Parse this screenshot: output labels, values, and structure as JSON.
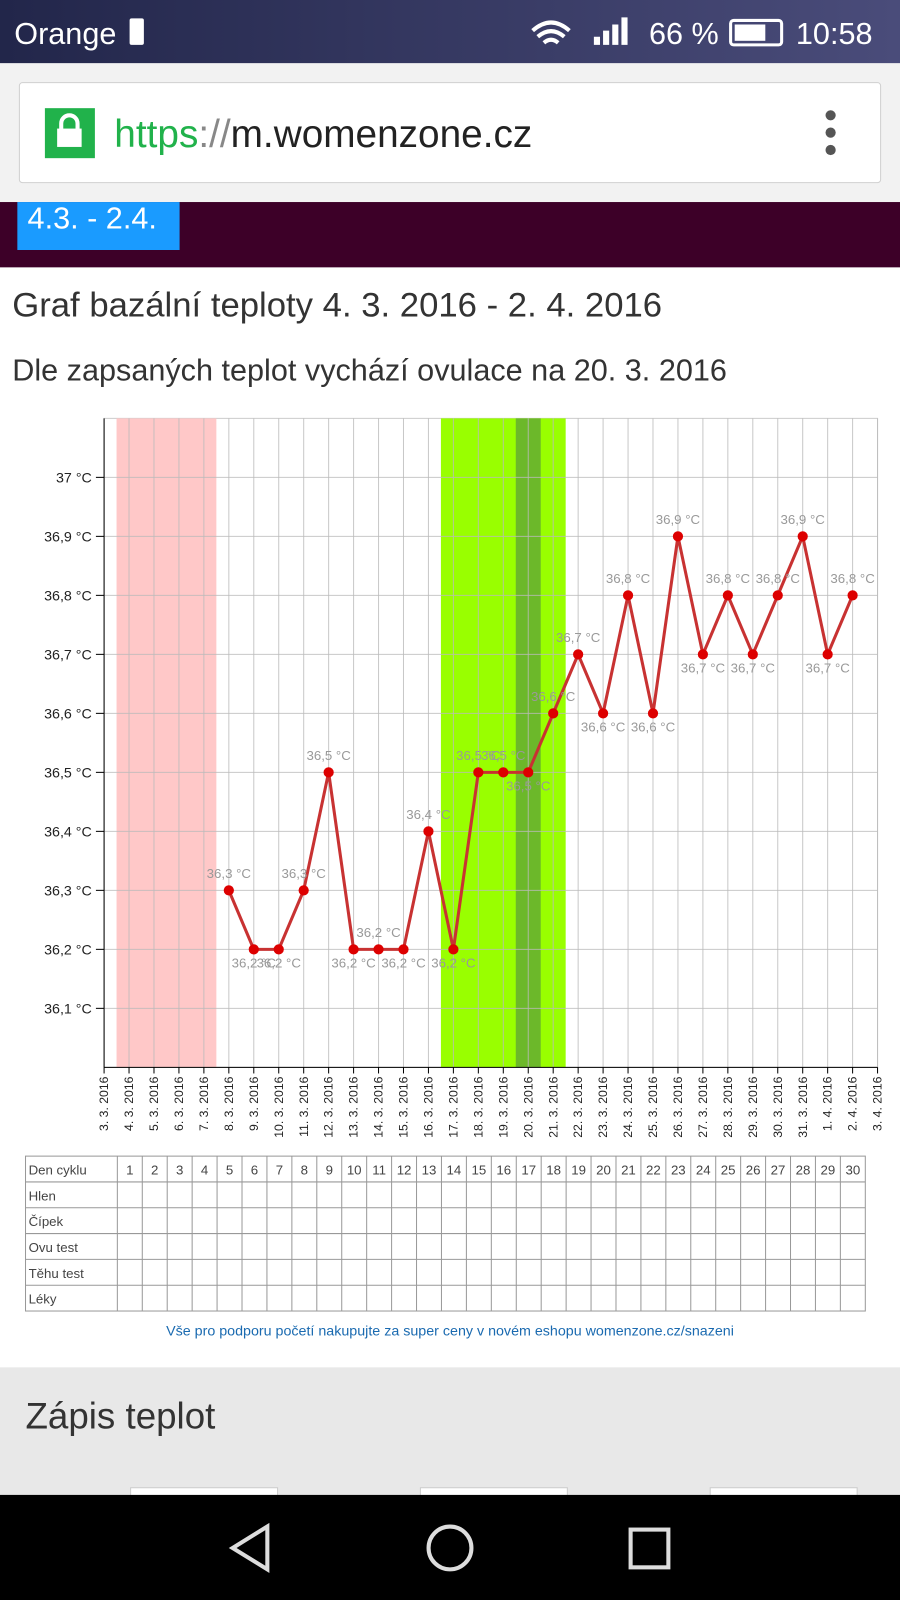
{
  "status_bar": {
    "carrier": "Orange",
    "battery": "66 %",
    "time": "10:58"
  },
  "browser": {
    "scheme": "https",
    "separator": "://",
    "host": "m.womenzone.cz"
  },
  "tab": "4.3. - 2.4.",
  "title": "Graf bazální teploty 4. 3. 2016 - 2. 4. 2016",
  "subtitle": "Dle zapsaných teplot vychází ovulace na 20. 3. 2016",
  "chart_data": {
    "type": "line",
    "categories": [
      "3. 3. 2016",
      "4. 3. 2016",
      "5. 3. 2016",
      "6. 3. 2016",
      "7. 3. 2016",
      "8. 3. 2016",
      "9. 3. 2016",
      "10. 3. 2016",
      "11. 3. 2016",
      "12. 3. 2016",
      "13. 3. 2016",
      "14. 3. 2016",
      "15. 3. 2016",
      "16. 3. 2016",
      "17. 3. 2016",
      "18. 3. 2016",
      "19. 3. 2016",
      "20. 3. 2016",
      "21. 3. 2016",
      "22. 3. 2016",
      "23. 3. 2016",
      "24. 3. 2016",
      "25. 3. 2016",
      "26. 3. 2016",
      "27. 3. 2016",
      "28. 3. 2016",
      "29. 3. 2016",
      "30. 3. 2016",
      "31. 3. 2016",
      "1. 4. 2016",
      "2. 4. 2016",
      "3. 4. 2016"
    ],
    "values": [
      null,
      null,
      null,
      null,
      null,
      36.3,
      36.2,
      36.2,
      36.3,
      36.5,
      36.2,
      36.2,
      36.2,
      36.4,
      36.2,
      36.5,
      36.5,
      36.5,
      36.6,
      36.7,
      36.6,
      36.8,
      36.6,
      36.9,
      36.7,
      36.8,
      36.7,
      36.8,
      36.9,
      36.7,
      36.8,
      null
    ],
    "value_labels": [
      null,
      null,
      null,
      null,
      null,
      "36,3 °C",
      "36,2 °C",
      "36,2 °C",
      "36,3 °C",
      "36,5 °C",
      "36,2 °C",
      "36,2 °C",
      "36,2 °C",
      "36,4 °C",
      "36,2 °C",
      "36,5 °C",
      "36,5 °C",
      "36,5 °C",
      "36,6 °C",
      "36,7 °C",
      "36,6 °C",
      "36,8 °C",
      "36,6 °C",
      "36,9 °C",
      "36,7 °C",
      "36,8 °C",
      "36,7 °C",
      "36,8 °C",
      "36,9 °C",
      "36,7 °C",
      "36,8 °C",
      null
    ],
    "color": "#c83232",
    "ylim": [
      36,
      37.1
    ],
    "yticks": [
      {
        "value": 36.1,
        "label": "36,1 °C"
      },
      {
        "value": 36.2,
        "label": "36,2 °C"
      },
      {
        "value": 36.3,
        "label": "36,3 °C"
      },
      {
        "value": 36.4,
        "label": "36,4 °C"
      },
      {
        "value": 36.5,
        "label": "36,5 °C"
      },
      {
        "value": 36.6,
        "label": "36,6 °C"
      },
      {
        "value": 36.7,
        "label": "36,7 °C"
      },
      {
        "value": 36.8,
        "label": "36,8 °C"
      },
      {
        "value": 36.9,
        "label": "36,9 °C"
      },
      {
        "value": 37,
        "label": "37 °C"
      }
    ],
    "grid": true,
    "highlights": [
      {
        "from": "4. 3. 2016",
        "to": "7. 3. 2016",
        "color": "#ffc8c8"
      },
      {
        "from": "17. 3. 2016",
        "to": "21. 3. 2016",
        "color": "#99ff00"
      },
      {
        "from": "20. 3. 2016",
        "to": "20. 3. 2016",
        "color": "#6cb82a"
      }
    ]
  },
  "cycle_table": {
    "header": "Den cyklu",
    "days": [
      1,
      2,
      3,
      4,
      5,
      6,
      7,
      8,
      9,
      10,
      11,
      12,
      13,
      14,
      15,
      16,
      17,
      18,
      19,
      20,
      21,
      22,
      23,
      24,
      25,
      26,
      27,
      28,
      29,
      30
    ],
    "rows": [
      "Hlen",
      "Čípek",
      "Ovu test",
      "Těhu test",
      "Léky"
    ]
  },
  "promo": "Vše pro podporu početí nakupujte za super ceny v novém eshopu womenzone.cz/snazeni",
  "section_heading": "Zápis teplot"
}
